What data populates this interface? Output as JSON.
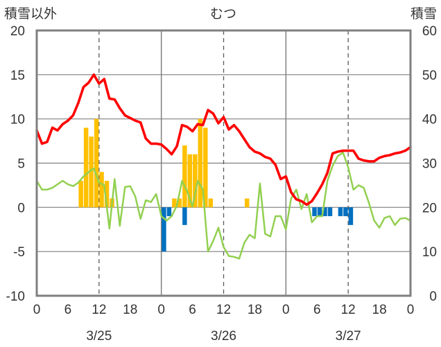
{
  "chart_data": {
    "type": "bar+line",
    "title": "むつ",
    "left_axis_label": "積雪以外",
    "right_axis_label": "積雪",
    "left_ylim": [
      -10,
      20
    ],
    "left_yticks": [
      -10,
      -5,
      0,
      5,
      10,
      15,
      20
    ],
    "right_ylim": [
      0,
      60
    ],
    "right_yticks": [
      0,
      10,
      20,
      30,
      40,
      50,
      60
    ],
    "x_range_hours": [
      0,
      72
    ],
    "x_tick_labels": [
      "0",
      "6",
      "12",
      "18",
      "0",
      "6",
      "12",
      "18",
      "0",
      "6",
      "12",
      "18",
      "0"
    ],
    "dates": [
      "3/25",
      "3/26",
      "3/27"
    ],
    "precipitation": {
      "color": "#ffc000",
      "hours": [
        9,
        10,
        11,
        12,
        13,
        14,
        15,
        27,
        28,
        29,
        30,
        31,
        32,
        33,
        34,
        41
      ],
      "values": [
        3,
        9,
        8,
        10,
        4,
        3,
        1,
        1,
        1,
        7,
        6,
        6,
        10,
        9,
        1,
        1
      ]
    },
    "snow_change": {
      "color": "#0070c0",
      "hours": [
        25,
        26,
        29,
        54,
        55,
        56,
        57,
        59,
        60,
        61
      ],
      "values": [
        -5,
        -1,
        -2,
        -1,
        -1,
        -1,
        -1,
        -1,
        -1,
        -2
      ]
    },
    "temperature": {
      "color": "#ff0000",
      "hours": [
        0,
        1,
        2,
        3,
        4,
        5,
        6,
        7,
        8,
        9,
        10,
        11,
        12,
        13,
        14,
        15,
        16,
        17,
        18,
        19,
        20,
        21,
        22,
        23,
        24,
        25,
        26,
        27,
        28,
        29,
        30,
        31,
        32,
        33,
        34,
        35,
        36,
        37,
        38,
        39,
        40,
        41,
        42,
        43,
        44,
        45,
        46,
        47,
        48,
        49,
        50,
        51,
        52,
        53,
        54,
        55,
        56,
        57,
        58,
        59,
        60,
        61,
        62,
        63,
        64,
        65,
        66,
        67,
        68,
        69,
        70,
        71,
        72
      ],
      "values": [
        8.7,
        7.2,
        7.4,
        9,
        8.7,
        9.4,
        9.8,
        10.4,
        11.8,
        13.6,
        14.1,
        15,
        14,
        14.5,
        12.3,
        12.2,
        11.2,
        10.4,
        10.1,
        9.8,
        9.6,
        7.8,
        7.2,
        7.2,
        7.1,
        6.6,
        6,
        6.9,
        9.3,
        9.1,
        8.6,
        9.4,
        9.3,
        11,
        10.6,
        9.5,
        10.2,
        8.8,
        9.3,
        8.6,
        7.7,
        6.8,
        6.3,
        6.1,
        5.7,
        5.5,
        4.8,
        3.2,
        3.5,
        1.7,
        0.9,
        0.7,
        0.3,
        0.7,
        1.6,
        2.6,
        3.9,
        6.1,
        6.3,
        6.4,
        6.4,
        6.4,
        5.5,
        5.3,
        5.2,
        5.2,
        5.6,
        5.8,
        5.9,
        6.1,
        6.2,
        6.4,
        6.8
      ]
    },
    "wind": {
      "color": "#92d050",
      "hours": [
        0,
        1,
        2,
        3,
        4,
        5,
        6,
        7,
        8,
        9,
        10,
        11,
        12,
        13,
        14,
        15,
        16,
        17,
        18,
        19,
        20,
        21,
        22,
        23,
        24,
        25,
        26,
        27,
        28,
        29,
        30,
        31,
        32,
        33,
        34,
        35,
        36,
        37,
        38,
        39,
        40,
        41,
        42,
        43,
        44,
        45,
        46,
        47,
        48,
        49,
        50,
        51,
        52,
        53,
        54,
        55,
        56,
        57,
        58,
        59,
        60,
        61,
        62,
        63,
        64,
        65,
        66,
        67,
        68,
        69,
        70,
        71,
        72
      ],
      "values": [
        3,
        2,
        2,
        2.2,
        2.6,
        3,
        2.6,
        2.4,
        2.8,
        3.5,
        4,
        4.4,
        2.8,
        2.5,
        -2.4,
        3.2,
        -2.1,
        2.3,
        2.4,
        1.2,
        -1.3,
        0.8,
        0.6,
        1.5,
        -1,
        -1.5,
        -1,
        0.2,
        3,
        1.8,
        0.1,
        3,
        2,
        -5,
        -3.8,
        -2.3,
        -4.5,
        -5.5,
        -5.6,
        -5.8,
        -4,
        -3.1,
        -3.5,
        2.7,
        -3,
        -3.3,
        -1,
        -1,
        -2.5,
        1,
        2,
        -0.2,
        1.5,
        -1.7,
        -1,
        -1,
        3,
        4.7,
        5.8,
        6.2,
        4.5,
        2,
        2.5,
        2.2,
        0.5,
        -1.5,
        -2.3,
        -1.2,
        -1,
        -2,
        -1.3,
        -1.2,
        -1.5
      ]
    },
    "baseline_series": {
      "color": "#7030a0",
      "value": -10
    },
    "grid": true
  }
}
